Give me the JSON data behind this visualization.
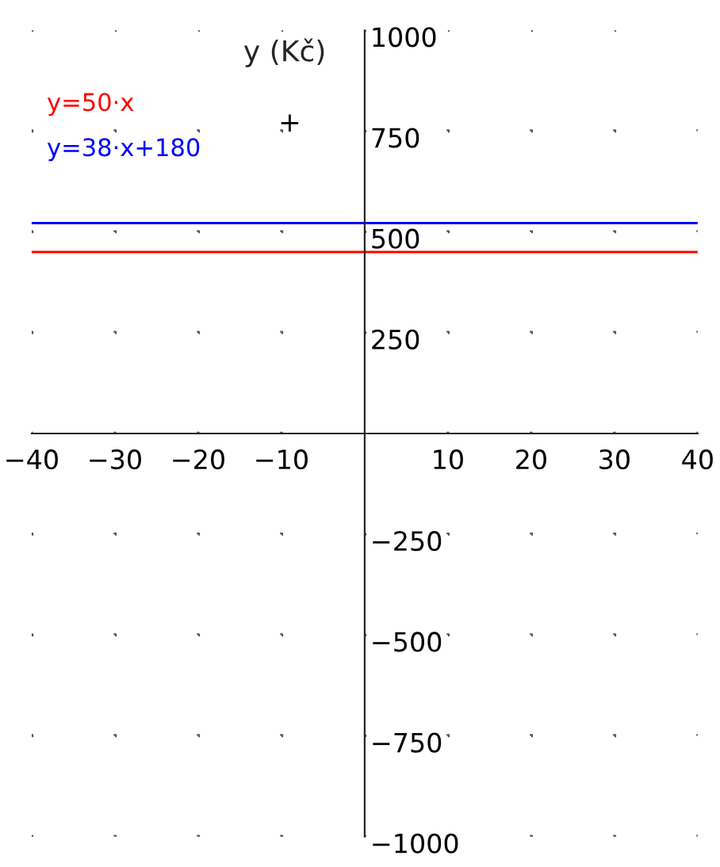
{
  "chart_data": {
    "type": "line",
    "ylabel": "y (Kč)",
    "x": [
      -40,
      40
    ],
    "series": [
      {
        "name": "y=50·x",
        "color": "#ff0000",
        "values": [
          450,
          450
        ]
      },
      {
        "name": "y=38·x+180",
        "color": "#0000ff",
        "values": [
          522,
          522
        ]
      },
      {
        "type": "scatter",
        "marker": "cross",
        "color": "#000000",
        "x": [
          -9
        ],
        "values": [
          770
        ]
      }
    ],
    "xlim": [
      -40,
      40
    ],
    "xticks": [
      -40,
      -30,
      -20,
      -10,
      10,
      20,
      30,
      40
    ],
    "ylim": [
      -1000,
      1000
    ],
    "yticks": [
      -1000,
      -750,
      -500,
      -250,
      250,
      500,
      750,
      1000
    ],
    "grid": true,
    "legend": "top left",
    "line_style": "solid"
  }
}
